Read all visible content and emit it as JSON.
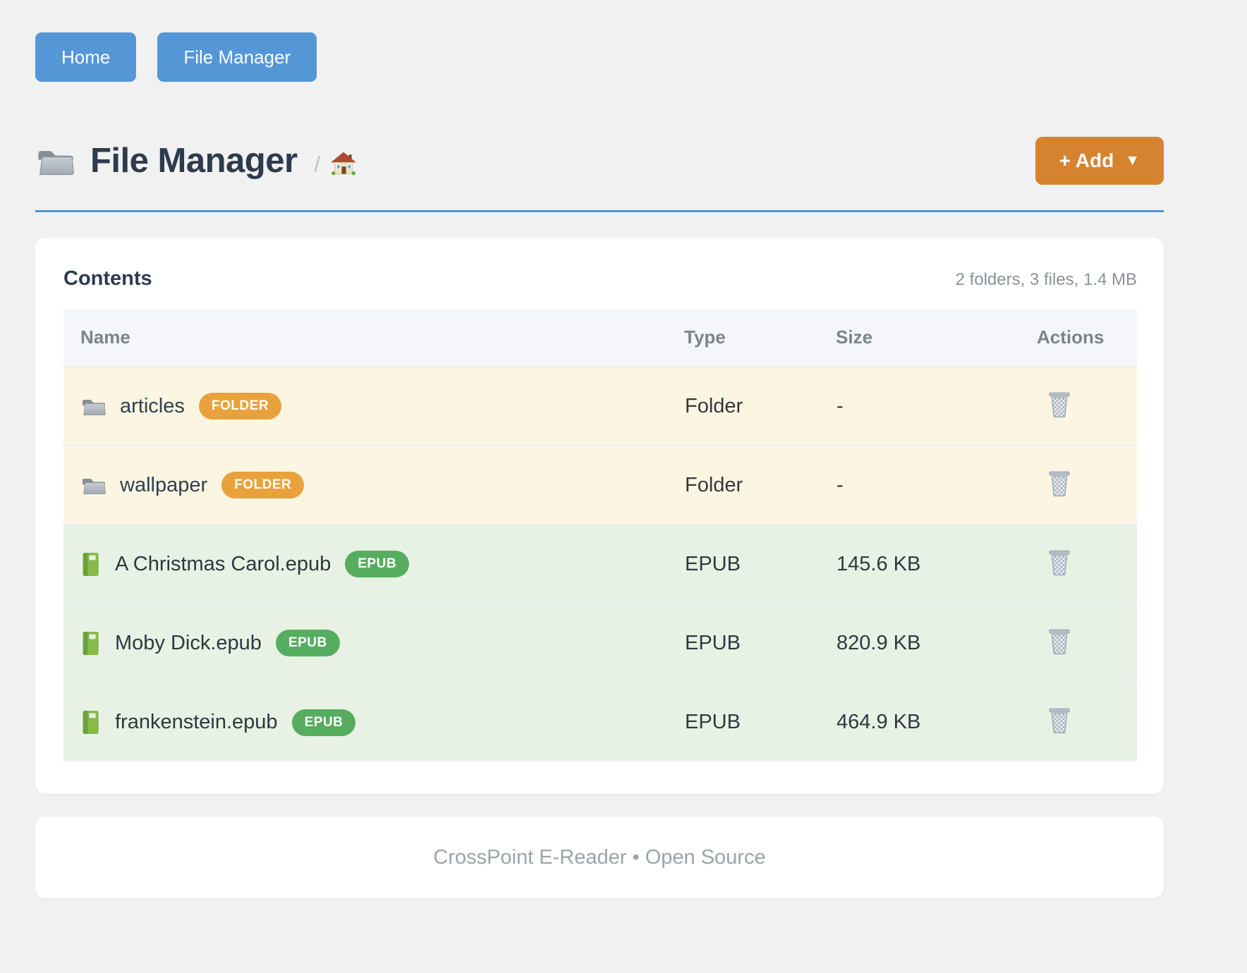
{
  "nav": {
    "home_label": "Home",
    "file_manager_label": "File Manager"
  },
  "header": {
    "title_icon": "folder-icon",
    "title": "File Manager",
    "breadcrumb_separator": "/",
    "breadcrumb_home_icon": "house-icon",
    "add_button_label": "+ Add",
    "add_button_caret": "▼"
  },
  "contents": {
    "title": "Contents",
    "summary": "2 folders, 3 files, 1.4 MB",
    "columns": [
      "Name",
      "Type",
      "Size",
      "Actions"
    ],
    "rows": [
      {
        "icon": "folder-icon",
        "name": "articles",
        "badge": "FOLDER",
        "kind": "folder",
        "type": "Folder",
        "size": "-",
        "action_icon": "trash-icon"
      },
      {
        "icon": "folder-icon",
        "name": "wallpaper",
        "badge": "FOLDER",
        "kind": "folder",
        "type": "Folder",
        "size": "-",
        "action_icon": "trash-icon"
      },
      {
        "icon": "book-icon",
        "name": "A Christmas Carol.epub",
        "badge": "EPUB",
        "kind": "epub",
        "type": "EPUB",
        "size": "145.6 KB",
        "action_icon": "trash-icon"
      },
      {
        "icon": "book-icon",
        "name": "Moby Dick.epub",
        "badge": "EPUB",
        "kind": "epub",
        "type": "EPUB",
        "size": "820.9 KB",
        "action_icon": "trash-icon"
      },
      {
        "icon": "book-icon",
        "name": "frankenstein.epub",
        "badge": "EPUB",
        "kind": "epub",
        "type": "EPUB",
        "size": "464.9 KB",
        "action_icon": "trash-icon"
      }
    ]
  },
  "footer": {
    "text": "CrossPoint E-Reader • Open Source"
  },
  "colors": {
    "primary_blue": "#5596d7",
    "divider_blue": "#4e95d7",
    "accent_orange": "#d6832f",
    "folder_badge_orange": "#e9a23b",
    "epub_badge_green": "#57ad5f",
    "folder_row_bg": "#fcf5e2",
    "epub_row_bg": "#e7f2e5",
    "page_bg": "#f1f1f2"
  }
}
